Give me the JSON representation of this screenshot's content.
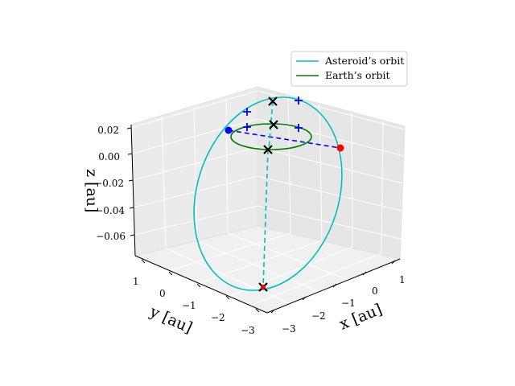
{
  "chart_data": {
    "type": "line3d",
    "projection": "3d-perspective",
    "grid": true,
    "legend_position": "top-right",
    "xlabel": "$x$ [au]",
    "ylabel": "$y$ [au]",
    "zlabel": "$z$ [au]",
    "x_ticks": [
      "−3",
      "−2",
      "−1",
      "0",
      "1"
    ],
    "y_ticks": [
      "1",
      "0",
      "−1",
      "−2",
      "−3"
    ],
    "z_ticks": [
      "0.02",
      "0.00",
      "−0.02",
      "−0.04",
      "−0.06"
    ],
    "xlim": [
      -3.3,
      1.3
    ],
    "ylim": [
      -3.3,
      1.3
    ],
    "zlim": [
      -0.08,
      0.025
    ],
    "series": [
      {
        "name": "Asteroid’s orbit",
        "color": "#00bfbf",
        "kind": "ellipse",
        "center": [
          -1.05,
          -0.85,
          -0.025
        ],
        "a": 2.2,
        "b": 1.1,
        "tilt_deg": 1.5
      },
      {
        "name": "Earth’s orbit",
        "color": "#008000",
        "kind": "circle",
        "center": [
          0,
          0,
          0
        ],
        "radius": 1.0
      }
    ],
    "annotations": {
      "points": [
        {
          "label": "blue-dot",
          "color": "#0000ff",
          "xyz": [
            0.55,
            -1.1,
            0.012
          ]
        },
        {
          "label": "red-dot",
          "color": "#ff0000",
          "xyz": [
            -0.35,
            1.0,
            0.0
          ]
        }
      ],
      "x_markers": [
        {
          "xyz": [
            0.1,
            0.1,
            0.02
          ]
        },
        {
          "xyz": [
            0.0,
            0.0,
            0.0
          ]
        },
        {
          "xyz": [
            0.3,
            0.3,
            -0.03
          ]
        },
        {
          "xyz": [
            -2.2,
            -2.2,
            -0.075
          ]
        }
      ]
    }
  }
}
